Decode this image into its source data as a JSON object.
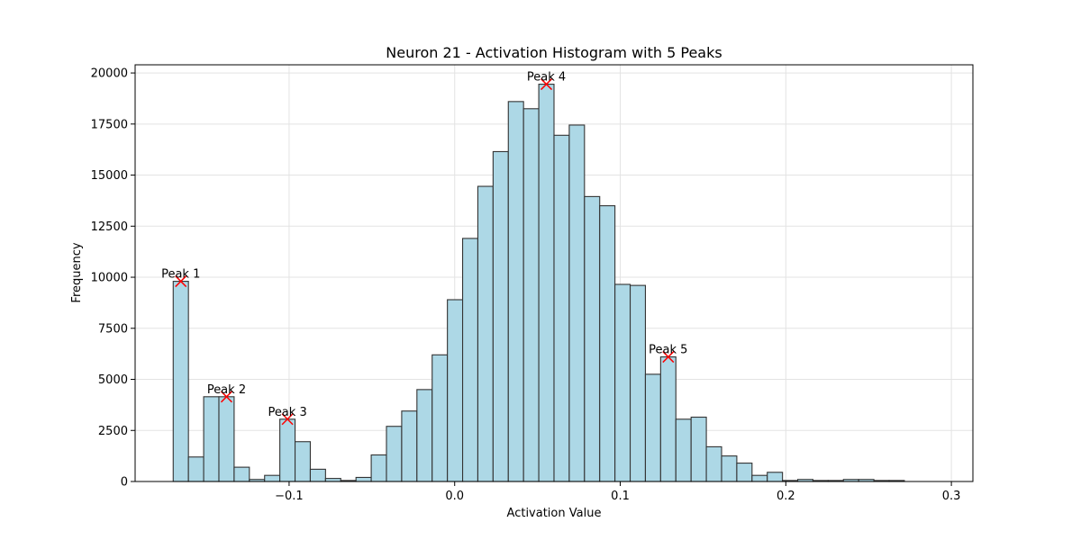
{
  "chart_data": {
    "type": "bar",
    "title": "Neuron 21 - Activation Histogram with 5 Peaks",
    "xlabel": "Activation Value",
    "ylabel": "Frequency",
    "xlim": [
      -0.193,
      0.313
    ],
    "ylim": [
      0,
      20400
    ],
    "grid": true,
    "bar_color": "#add8e6",
    "bar_edge_color": "#333333",
    "peak_marker_color": "#ff0000",
    "x_ticks": [
      {
        "value": -0.1,
        "label": "−0.1"
      },
      {
        "value": 0.0,
        "label": "0.0"
      },
      {
        "value": 0.1,
        "label": "0.1"
      },
      {
        "value": 0.2,
        "label": "0.2"
      },
      {
        "value": 0.3,
        "label": "0.3"
      }
    ],
    "y_ticks": [
      {
        "value": 0,
        "label": "0"
      },
      {
        "value": 2500,
        "label": "2500"
      },
      {
        "value": 5000,
        "label": "5000"
      },
      {
        "value": 7500,
        "label": "7500"
      },
      {
        "value": 10000,
        "label": "10000"
      },
      {
        "value": 12500,
        "label": "12500"
      },
      {
        "value": 15000,
        "label": "15000"
      },
      {
        "value": 17500,
        "label": "17500"
      },
      {
        "value": 20000,
        "label": "20000"
      }
    ],
    "bin_start": -0.17,
    "bin_width": 0.0092,
    "counts": [
      9800,
      1200,
      4150,
      4150,
      700,
      100,
      300,
      3050,
      1950,
      600,
      150,
      50,
      200,
      1300,
      2700,
      3450,
      4500,
      6200,
      8900,
      11900,
      14450,
      16150,
      18600,
      18250,
      19450,
      16950,
      17450,
      13950,
      13500,
      9650,
      9600,
      5250,
      6100,
      3050,
      3150,
      1700,
      1250,
      900,
      300,
      450,
      50,
      100,
      50,
      50,
      100,
      100,
      50,
      50,
      0
    ],
    "peaks": [
      {
        "label": "Peak 1",
        "x": -0.1654,
        "y": 9800
      },
      {
        "label": "Peak 2",
        "x": -0.1378,
        "y": 4150
      },
      {
        "label": "Peak 3",
        "x": -0.101,
        "y": 3050
      },
      {
        "label": "Peak 4",
        "x": 0.0554,
        "y": 19450
      },
      {
        "label": "Peak 5",
        "x": 0.129,
        "y": 6100
      }
    ]
  }
}
